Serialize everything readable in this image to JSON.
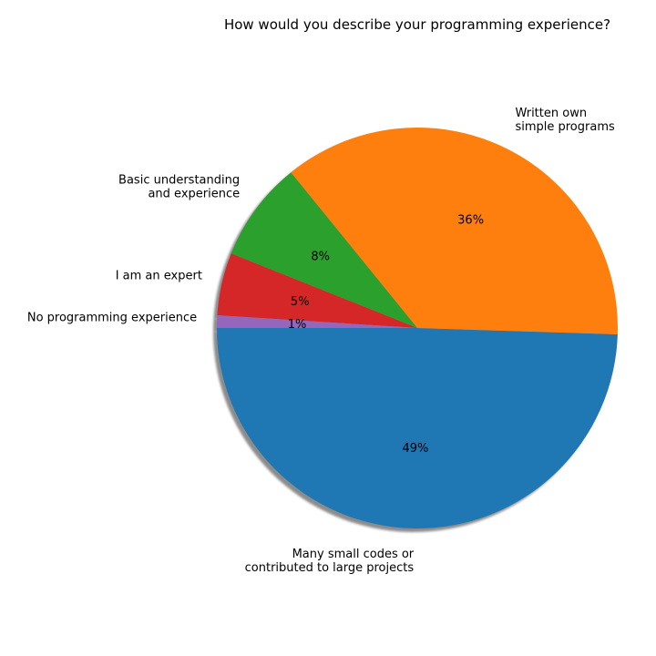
{
  "chart_data": {
    "type": "pie",
    "title": "How would you describe your programming experience?",
    "autopct_format": "%",
    "shadow": true,
    "slices": [
      {
        "label": "Many small codes or\ncontributed to large projects",
        "value": 49,
        "pct_label": "49%",
        "color": "#1f77b4"
      },
      {
        "label": "Written own\nsimple programs",
        "value": 36,
        "pct_label": "36%",
        "color": "#ff7f0e"
      },
      {
        "label": "Basic understanding\nand experience",
        "value": 8,
        "pct_label": "8%",
        "color": "#2ca02c"
      },
      {
        "label": "I am an expert",
        "value": 5,
        "pct_label": "5%",
        "color": "#d62728"
      },
      {
        "label": "No programming experience",
        "value": 1,
        "pct_label": "1%",
        "color": "#9467bd"
      }
    ]
  }
}
